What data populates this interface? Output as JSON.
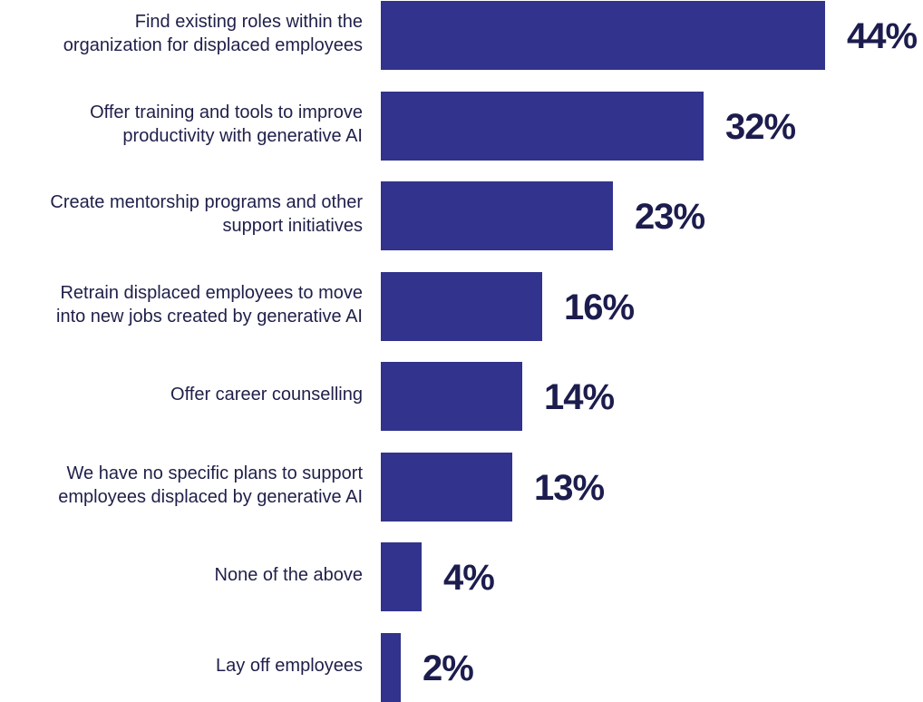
{
  "chart_data": {
    "type": "bar",
    "orientation": "horizontal",
    "categories": [
      [
        "Find existing roles within the",
        "organization for displaced employees"
      ],
      [
        "Offer training and tools to improve",
        "productivity with generative AI"
      ],
      [
        "Create mentorship programs and other",
        "support initiatives"
      ],
      [
        "Retrain displaced employees to move",
        "into new jobs created by generative AI"
      ],
      [
        "Offer career counselling"
      ],
      [
        "We have no specific plans to support",
        "employees displaced by generative AI"
      ],
      [
        "None of the above"
      ],
      [
        "Lay off employees"
      ]
    ],
    "values": [
      44,
      32,
      23,
      16,
      14,
      13,
      4,
      2
    ],
    "value_labels": [
      "44%",
      "32%",
      "23%",
      "16%",
      "14%",
      "13%",
      "4%",
      "2%"
    ],
    "unit": "%",
    "xlim": [
      0,
      44
    ],
    "grid": false,
    "legend": "none",
    "bar_color": "#31338c",
    "label_color": "#1f1f4a"
  }
}
